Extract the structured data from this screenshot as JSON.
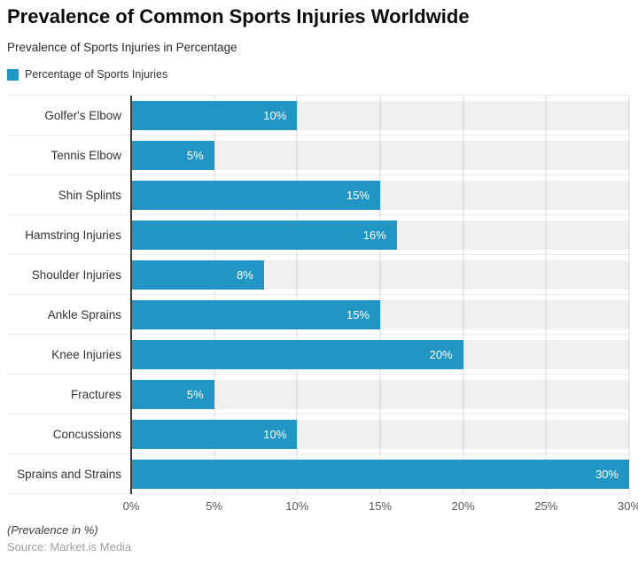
{
  "header": {
    "title": "Prevalence of Common Sports Injuries Worldwide",
    "subtitle": "Prevalence of Sports Injuries in Percentage"
  },
  "legend": {
    "label": "Percentage of Sports Injuries",
    "swatch_color": "#2196C4"
  },
  "chart_data": {
    "type": "bar",
    "orientation": "horizontal",
    "title": "Prevalence of Common Sports Injuries Worldwide",
    "subtitle": "Prevalence of Sports Injuries in Percentage",
    "series_name": "Percentage of Sports Injuries",
    "categories": [
      "Golfer's Elbow",
      "Tennis Elbow",
      "Shin Splints",
      "Hamstring Injuries",
      "Shoulder Injuries",
      "Ankle Sprains",
      "Knee Injuries",
      "Fractures",
      "Concussions",
      "Sprains and Strains"
    ],
    "values": [
      10,
      5,
      15,
      16,
      8,
      15,
      20,
      5,
      10,
      30
    ],
    "value_labels": [
      "10%",
      "5%",
      "15%",
      "16%",
      "8%",
      "15%",
      "20%",
      "5%",
      "10%",
      "30%"
    ],
    "x_ticks": [
      "0%",
      "5%",
      "10%",
      "15%",
      "20%",
      "25%",
      "30%"
    ],
    "xlim": [
      0,
      30
    ],
    "xlabel": "",
    "ylabel": "",
    "grid": "vertical",
    "legend_position": "top-left",
    "bar_color": "#2196C4",
    "track_color": "#F0F0F0",
    "value_label_color": "#FFFFFF"
  },
  "footer": {
    "note": "(Prevalence in %)",
    "source": "Source: Market.is Media"
  }
}
